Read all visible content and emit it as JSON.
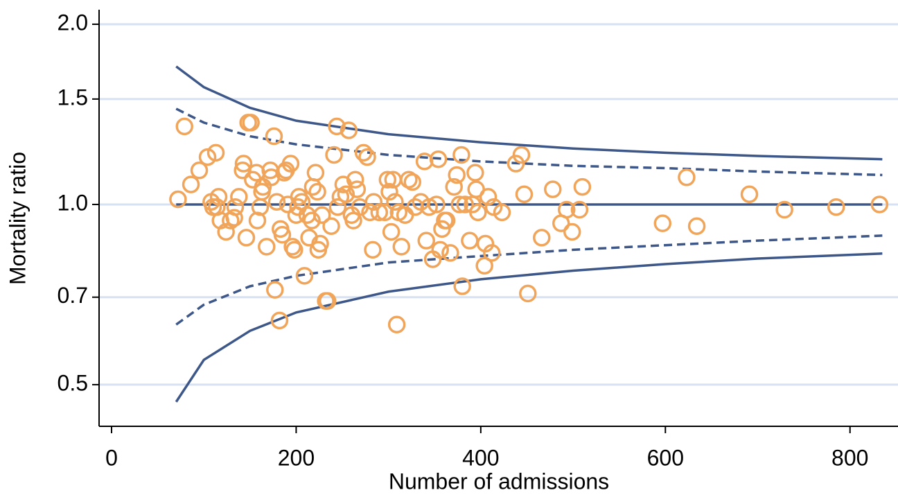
{
  "chart_data": {
    "type": "scatter",
    "xlabel": "Number of admissions",
    "ylabel": "Mortality ratio",
    "xlim": [
      -13.5,
      852
    ],
    "ylim": [
      0.426,
      2.115
    ],
    "ylog": true,
    "grid": true,
    "grid_color": "#d6e2f3",
    "xticks": [
      0,
      200,
      400,
      600,
      800
    ],
    "yticks": [
      {
        "value": 0.5,
        "label": "0.5"
      },
      {
        "value": 0.7,
        "label": "0.7"
      },
      {
        "value": 1.0,
        "label": "1.0"
      },
      {
        "value": 1.5,
        "label": "1.5"
      },
      {
        "value": 2.0,
        "label": "2.0"
      }
    ],
    "series": [
      {
        "type": "scatter",
        "color": "#f0a55a",
        "x": [
          72,
          79,
          86,
          95,
          104,
          113,
          108,
          110,
          114,
          116,
          118,
          124,
          129,
          133,
          134,
          138,
          142,
          143,
          146,
          148,
          151,
          153,
          157,
          158,
          161,
          163,
          164,
          168,
          172,
          173,
          176,
          177,
          179,
          182,
          183,
          185,
          187,
          189,
          191,
          194,
          196,
          198,
          200,
          202,
          203,
          206,
          209,
          212,
          214,
          217,
          218,
          221,
          223,
          224,
          226,
          228,
          232,
          234,
          238,
          241,
          244,
          245,
          248,
          251,
          254,
          257,
          260,
          262,
          264,
          266,
          269,
          273,
          277,
          280,
          283,
          284,
          290,
          296,
          299,
          301,
          303,
          305,
          307,
          309,
          311,
          314,
          318,
          322,
          326,
          329,
          335,
          339,
          341,
          344,
          348,
          352,
          354,
          356,
          358,
          361,
          363,
          367,
          371,
          374,
          377,
          379,
          380,
          383,
          388,
          391,
          394,
          395,
          397,
          405,
          404,
          408,
          412,
          414,
          423,
          438,
          444,
          447,
          451,
          466,
          478,
          487,
          493,
          499,
          507,
          510,
          597,
          623,
          634,
          691,
          729,
          785,
          832
        ],
        "values": [
          1.02,
          1.35,
          1.08,
          1.14,
          1.2,
          1.22,
          1.01,
          0.99,
          0.99,
          1.03,
          0.94,
          0.9,
          0.94,
          0.95,
          0.99,
          1.03,
          1.14,
          1.17,
          0.88,
          1.37,
          1.37,
          1.1,
          1.13,
          0.94,
          0.99,
          1.05,
          1.07,
          0.85,
          1.14,
          1.11,
          1.3,
          0.72,
          1.01,
          0.64,
          0.91,
          0.89,
          1.13,
          1.14,
          1.0,
          1.17,
          0.85,
          0.84,
          0.96,
          0.99,
          1.03,
          1.01,
          0.76,
          0.96,
          0.88,
          0.94,
          1.07,
          1.13,
          1.05,
          0.84,
          0.86,
          0.96,
          0.69,
          0.69,
          0.92,
          1.21,
          1.35,
          0.99,
          1.03,
          1.08,
          1.04,
          1.33,
          0.96,
          0.94,
          1.1,
          1.06,
          0.99,
          1.22,
          1.2,
          0.97,
          0.84,
          1.01,
          0.97,
          0.97,
          1.1,
          1.05,
          0.9,
          1.1,
          1.01,
          0.63,
          0.97,
          0.85,
          0.96,
          1.1,
          1.09,
          0.99,
          1.01,
          1.18,
          0.87,
          0.99,
          0.81,
          1.0,
          1.19,
          0.84,
          0.91,
          0.94,
          0.94,
          0.83,
          1.07,
          1.12,
          1.0,
          1.21,
          0.73,
          1.0,
          0.87,
          1.0,
          1.13,
          1.06,
          0.97,
          0.86,
          0.79,
          1.03,
          0.83,
          0.99,
          0.97,
          1.17,
          1.21,
          1.04,
          0.71,
          0.88,
          1.06,
          0.93,
          0.98,
          0.9,
          0.98,
          1.07,
          0.93,
          1.11,
          0.92,
          1.04,
          0.98,
          0.99,
          1.0
        ]
      },
      {
        "type": "line",
        "color": "#3d5789",
        "dashed": false,
        "x": [
          70,
          100,
          150,
          200,
          300,
          400,
          500,
          600,
          700,
          835
        ],
        "values": [
          1.7,
          1.57,
          1.45,
          1.38,
          1.31,
          1.27,
          1.24,
          1.22,
          1.205,
          1.19
        ]
      },
      {
        "type": "line",
        "color": "#3d5789",
        "dashed": true,
        "x": [
          70,
          100,
          150,
          200,
          300,
          400,
          500,
          600,
          700,
          835
        ],
        "values": [
          1.445,
          1.37,
          1.3,
          1.26,
          1.21,
          1.18,
          1.16,
          1.15,
          1.135,
          1.12
        ]
      },
      {
        "type": "line",
        "color": "#3d5789",
        "dashed": false,
        "x": [
          70,
          835
        ],
        "values": [
          1.0,
          1.0
        ]
      },
      {
        "type": "line",
        "color": "#3d5789",
        "dashed": true,
        "x": [
          70,
          100,
          150,
          200,
          300,
          400,
          500,
          600,
          700,
          835
        ],
        "values": [
          0.63,
          0.68,
          0.73,
          0.76,
          0.8,
          0.82,
          0.84,
          0.855,
          0.87,
          0.887
        ]
      },
      {
        "type": "line",
        "color": "#3d5789",
        "dashed": false,
        "x": [
          70,
          100,
          150,
          200,
          300,
          400,
          500,
          600,
          700,
          835
        ],
        "values": [
          0.468,
          0.55,
          0.615,
          0.66,
          0.715,
          0.75,
          0.775,
          0.795,
          0.812,
          0.828
        ]
      }
    ]
  }
}
